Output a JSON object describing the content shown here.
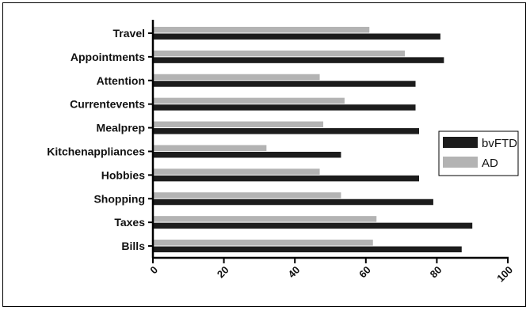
{
  "chart_data": {
    "type": "bar",
    "orientation": "horizontal",
    "categories": [
      "Travel",
      "Appointments",
      "Attention",
      "Currentevents",
      "Mealprep",
      "Kitchenappliances",
      "Hobbies",
      "Shopping",
      "Taxes",
      "Bills"
    ],
    "series": [
      {
        "name": "bvFTD",
        "color": "#1c1c1c",
        "values": [
          81,
          82,
          74,
          74,
          75,
          53,
          75,
          79,
          90,
          87
        ]
      },
      {
        "name": "AD",
        "color": "#b3b3b3",
        "values": [
          61,
          71,
          47,
          54,
          48,
          32,
          47,
          53,
          63,
          62
        ]
      }
    ],
    "xticks": [
      "0",
      "20",
      "40",
      "60",
      "80",
      "100"
    ],
    "xlim": [
      0,
      100
    ],
    "title": "",
    "xlabel": "",
    "ylabel": "",
    "grid": false,
    "legend_position": "right"
  }
}
